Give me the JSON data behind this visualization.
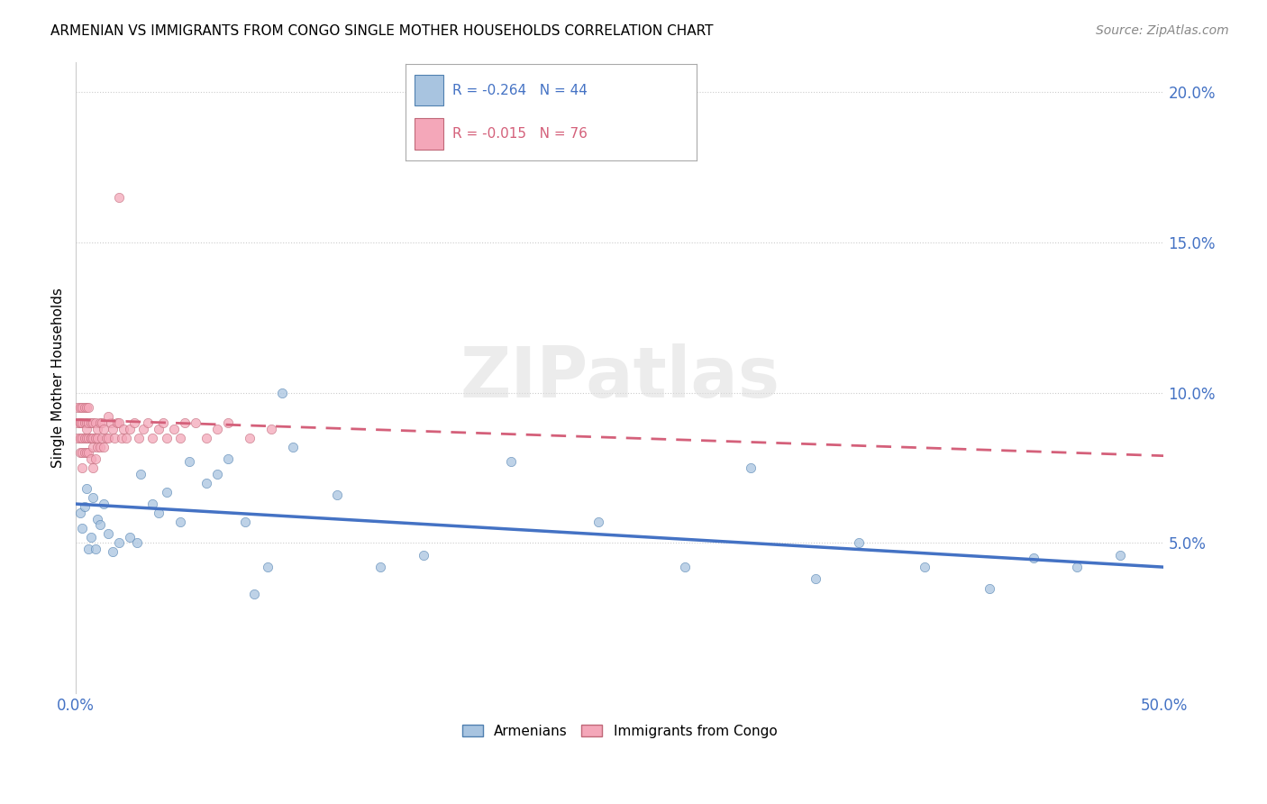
{
  "title": "ARMENIAN VS IMMIGRANTS FROM CONGO SINGLE MOTHER HOUSEHOLDS CORRELATION CHART",
  "source": "Source: ZipAtlas.com",
  "ylabel": "Single Mother Households",
  "xlim": [
    0.0,
    0.5
  ],
  "ylim": [
    0.0,
    0.21
  ],
  "yticks": [
    0.05,
    0.1,
    0.15,
    0.2
  ],
  "ytick_labels": [
    "5.0%",
    "10.0%",
    "15.0%",
    "20.0%"
  ],
  "xticks": [
    0.0,
    0.1,
    0.2,
    0.3,
    0.4,
    0.5
  ],
  "xtick_labels": [
    "0.0%",
    "",
    "",
    "",
    "",
    "50.0%"
  ],
  "legend_armenians": "Armenians",
  "legend_congo": "Immigrants from Congo",
  "r_armenians": -0.264,
  "n_armenians": 44,
  "r_congo": -0.015,
  "n_congo": 76,
  "color_armenians": "#a8c4e0",
  "color_congo": "#f4a7b9",
  "color_line_armenians": "#4472c4",
  "color_line_congo": "#d4607a",
  "watermark": "ZIPatlas",
  "arm_line_x": [
    0.0,
    0.5
  ],
  "arm_line_y": [
    0.063,
    0.042
  ],
  "congo_line_x": [
    0.0,
    0.5
  ],
  "congo_line_y": [
    0.091,
    0.079
  ],
  "armenians_x": [
    0.002,
    0.003,
    0.004,
    0.005,
    0.006,
    0.007,
    0.008,
    0.009,
    0.01,
    0.011,
    0.013,
    0.015,
    0.017,
    0.02,
    0.025,
    0.028,
    0.03,
    0.035,
    0.038,
    0.042,
    0.048,
    0.052,
    0.06,
    0.065,
    0.07,
    0.078,
    0.082,
    0.088,
    0.095,
    0.1,
    0.12,
    0.14,
    0.16,
    0.2,
    0.24,
    0.28,
    0.31,
    0.34,
    0.36,
    0.39,
    0.42,
    0.44,
    0.46,
    0.48
  ],
  "armenians_y": [
    0.06,
    0.055,
    0.062,
    0.068,
    0.048,
    0.052,
    0.065,
    0.048,
    0.058,
    0.056,
    0.063,
    0.053,
    0.047,
    0.05,
    0.052,
    0.05,
    0.073,
    0.063,
    0.06,
    0.067,
    0.057,
    0.077,
    0.07,
    0.073,
    0.078,
    0.057,
    0.033,
    0.042,
    0.1,
    0.082,
    0.066,
    0.042,
    0.046,
    0.077,
    0.057,
    0.042,
    0.075,
    0.038,
    0.05,
    0.042,
    0.035,
    0.045,
    0.042,
    0.046
  ],
  "congo_x": [
    0.001,
    0.001,
    0.001,
    0.002,
    0.002,
    0.002,
    0.002,
    0.002,
    0.003,
    0.003,
    0.003,
    0.003,
    0.003,
    0.004,
    0.004,
    0.004,
    0.004,
    0.005,
    0.005,
    0.005,
    0.005,
    0.005,
    0.006,
    0.006,
    0.006,
    0.006,
    0.007,
    0.007,
    0.007,
    0.007,
    0.008,
    0.008,
    0.008,
    0.008,
    0.009,
    0.009,
    0.009,
    0.01,
    0.01,
    0.01,
    0.011,
    0.011,
    0.012,
    0.012,
    0.013,
    0.013,
    0.014,
    0.015,
    0.016,
    0.017,
    0.018,
    0.019,
    0.02,
    0.021,
    0.022,
    0.023,
    0.025,
    0.027,
    0.029,
    0.031,
    0.033,
    0.035,
    0.038,
    0.04,
    0.042,
    0.045,
    0.048,
    0.05,
    0.055,
    0.06,
    0.065,
    0.07,
    0.08,
    0.09,
    0.015,
    0.02
  ],
  "congo_y": [
    0.09,
    0.095,
    0.085,
    0.09,
    0.09,
    0.085,
    0.08,
    0.095,
    0.085,
    0.095,
    0.09,
    0.08,
    0.075,
    0.085,
    0.08,
    0.095,
    0.09,
    0.085,
    0.09,
    0.08,
    0.088,
    0.095,
    0.085,
    0.09,
    0.08,
    0.095,
    0.085,
    0.09,
    0.078,
    0.085,
    0.085,
    0.082,
    0.09,
    0.075,
    0.085,
    0.078,
    0.09,
    0.085,
    0.088,
    0.082,
    0.082,
    0.09,
    0.085,
    0.09,
    0.088,
    0.082,
    0.085,
    0.085,
    0.09,
    0.088,
    0.085,
    0.09,
    0.09,
    0.085,
    0.088,
    0.085,
    0.088,
    0.09,
    0.085,
    0.088,
    0.09,
    0.085,
    0.088,
    0.09,
    0.085,
    0.088,
    0.085,
    0.09,
    0.09,
    0.085,
    0.088,
    0.09,
    0.085,
    0.088,
    0.092,
    0.165
  ]
}
